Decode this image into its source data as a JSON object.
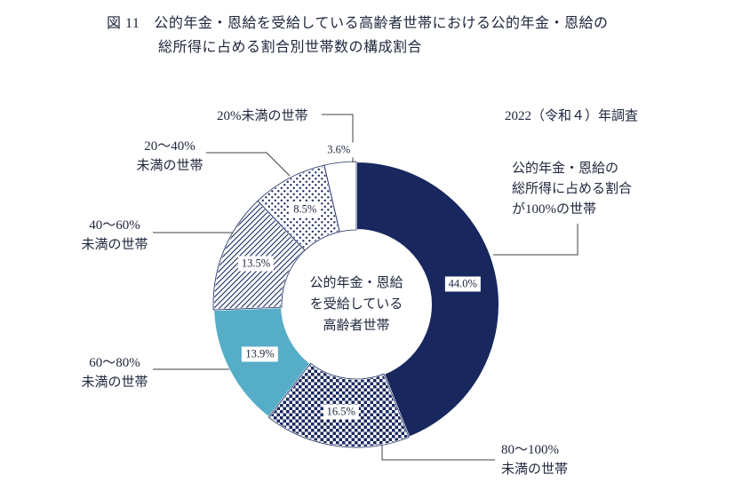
{
  "header": {
    "figure_label": "図 11",
    "title_line1": "公的年金・恩給を受給している高齢者世帯における公的年金・恩給の",
    "title_line2": "総所得に占める割合別世帯数の構成割合"
  },
  "survey_note": "2022（令和４）年調査",
  "center_label": {
    "lines": [
      "公的年金・恩給",
      "を受給している",
      "高齢者世帯"
    ]
  },
  "callouts": {
    "c100": {
      "lines": [
        "公的年金・恩給の",
        "総所得に占める割合",
        "が100%の世帯"
      ]
    },
    "c80_100": {
      "lines": [
        "80～100%",
        "未満の世帯"
      ]
    },
    "c60_80": {
      "lines": [
        "60～80%",
        "未満の世帯"
      ]
    },
    "c40_60": {
      "lines": [
        "40～60%",
        "未満の世帯"
      ]
    },
    "c20_40": {
      "lines": [
        "20～40%",
        "未満の世帯"
      ]
    },
    "c20": {
      "lines": [
        "20%未満の世帯"
      ]
    }
  },
  "chart_data": {
    "type": "pie",
    "subtype": "donut",
    "title": "図11 公的年金・恩給を受給している高齢者世帯における公的年金・恩給の総所得に占める割合別世帯数の構成割合",
    "annotation": "2022（令和４）年調査",
    "center_label": "公的年金・恩給を受給している高齢者世帯",
    "start_angle_deg": 0,
    "direction": "clockwise",
    "unit": "%",
    "legend": "none",
    "categories": [
      "公的年金・恩給の総所得に占める割合が100%の世帯",
      "80～100%未満の世帯",
      "60～80%未満の世帯",
      "40～60%未満の世帯",
      "20～40%未満の世帯",
      "20%未満の世帯"
    ],
    "values": [
      44.0,
      16.5,
      13.9,
      13.5,
      8.5,
      3.6
    ],
    "slices": [
      {
        "label": "公的年金・恩給の総所得に占める割合が100%の世帯",
        "value": 44.0,
        "display": "44.0%",
        "pattern": "solid",
        "fill": "#18285f",
        "outline": false,
        "label_outside": false
      },
      {
        "label": "80～100%未満の世帯",
        "value": 16.5,
        "display": "16.5%",
        "pattern": "checker",
        "fill": "",
        "outline": true,
        "label_outside": false
      },
      {
        "label": "60～80%未満の世帯",
        "value": 13.9,
        "display": "13.9%",
        "pattern": "solid",
        "fill": "#56adc8",
        "outline": false,
        "label_outside": false
      },
      {
        "label": "40～60%未満の世帯",
        "value": 13.5,
        "display": "13.5%",
        "pattern": "diag",
        "fill": "",
        "outline": true,
        "label_outside": false
      },
      {
        "label": "20～40%未満の世帯",
        "value": 8.5,
        "display": "8.5%",
        "pattern": "dots",
        "fill": "",
        "outline": true,
        "label_outside": false
      },
      {
        "label": "20%未満の世帯",
        "value": 3.6,
        "display": "3.6%",
        "pattern": "none",
        "fill": "#ffffff",
        "outline": true,
        "label_outside": true
      }
    ],
    "colors": {
      "navy": "#18285f",
      "light_blue": "#56adc8",
      "pattern_ink": "#18285f",
      "background": "#ffffff"
    }
  }
}
